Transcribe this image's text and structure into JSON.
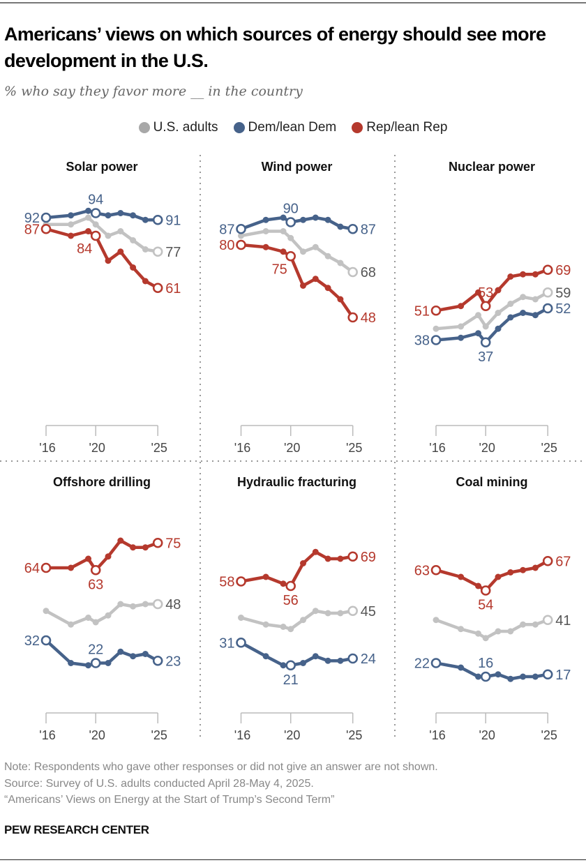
{
  "header": {
    "title": "Americans’ views on which sources of energy should see more development in the U.S.",
    "subtitle": "% who say they favor more __ in the country"
  },
  "legend": [
    {
      "label": "U.S. adults",
      "color": "#c2c2c2"
    },
    {
      "label": "Dem/lean Dem",
      "color": "#46628a"
    },
    {
      "label": "Rep/lean Rep",
      "color": "#b5392d"
    }
  ],
  "colors": {
    "us": "#c2c2c2",
    "us_label": "#555555",
    "dem": "#46628a",
    "rep": "#b5392d",
    "axis": "#bbbbbb"
  },
  "chart_data": [
    {
      "type": "line",
      "title": "Solar power",
      "x": [
        2016,
        2018,
        2019.4,
        2020,
        2021,
        2022,
        2023,
        2024,
        2025
      ],
      "xticks": [
        "'16",
        "'20",
        "'25"
      ],
      "xtick_values": [
        2016,
        2020,
        2025
      ],
      "series": [
        {
          "name": "U.S. adults",
          "key": "us",
          "values": [
            89,
            89,
            92,
            89,
            84,
            86,
            82,
            78,
            77
          ],
          "labels": [
            {
              "at": 2025,
              "text": "77",
              "pos": "right"
            }
          ]
        },
        {
          "name": "Dem/lean Dem",
          "key": "dem",
          "values": [
            92,
            93,
            95,
            94,
            93,
            94,
            93,
            91,
            91
          ],
          "labels": [
            {
              "at": 2016,
              "text": "92",
              "pos": "left"
            },
            {
              "at": 2020,
              "text": "94",
              "pos": "above"
            },
            {
              "at": 2025,
              "text": "91",
              "pos": "right"
            }
          ]
        },
        {
          "name": "Rep/lean Rep",
          "key": "rep",
          "values": [
            87,
            84,
            86,
            84,
            73,
            77,
            70,
            64,
            61
          ],
          "labels": [
            {
              "at": 2016,
              "text": "87",
              "pos": "left"
            },
            {
              "at": 2020,
              "text": "84",
              "pos": "below-left"
            },
            {
              "at": 2025,
              "text": "61",
              "pos": "right"
            }
          ]
        }
      ]
    },
    {
      "type": "line",
      "title": "Wind power",
      "x": [
        2016,
        2018,
        2019.4,
        2020,
        2021,
        2022,
        2023,
        2024,
        2025
      ],
      "xticks": [
        "'16",
        "'20",
        "'25"
      ],
      "xtick_values": [
        2016,
        2020,
        2025
      ],
      "series": [
        {
          "name": "U.S. adults",
          "key": "us",
          "values": [
            84,
            86,
            86,
            83,
            77,
            79,
            75,
            72,
            68
          ],
          "labels": [
            {
              "at": 2025,
              "text": "68",
              "pos": "right"
            }
          ]
        },
        {
          "name": "Dem/lean Dem",
          "key": "dem",
          "values": [
            87,
            91,
            92,
            90,
            91,
            92,
            91,
            88,
            87
          ],
          "labels": [
            {
              "at": 2016,
              "text": "87",
              "pos": "left"
            },
            {
              "at": 2020,
              "text": "90",
              "pos": "above"
            },
            {
              "at": 2025,
              "text": "87",
              "pos": "right"
            }
          ]
        },
        {
          "name": "Rep/lean Rep",
          "key": "rep",
          "values": [
            80,
            79,
            77,
            75,
            62,
            65,
            61,
            56,
            48
          ],
          "labels": [
            {
              "at": 2016,
              "text": "80",
              "pos": "left"
            },
            {
              "at": 2020,
              "text": "75",
              "pos": "below-left"
            },
            {
              "at": 2025,
              "text": "48",
              "pos": "right"
            }
          ]
        }
      ]
    },
    {
      "type": "line",
      "title": "Nuclear power",
      "x": [
        2016,
        2018,
        2019.4,
        2020,
        2021,
        2022,
        2023,
        2024,
        2025
      ],
      "xticks": [
        "'16",
        "'20",
        "'25"
      ],
      "xtick_values": [
        2016,
        2020,
        2025
      ],
      "series": [
        {
          "name": "U.S. adults",
          "key": "us",
          "values": [
            43,
            44,
            49,
            44,
            50,
            54,
            57,
            56,
            59
          ],
          "labels": [
            {
              "at": 2025,
              "text": "59",
              "pos": "right"
            }
          ]
        },
        {
          "name": "Dem/lean Dem",
          "key": "dem",
          "values": [
            38,
            39,
            41,
            37,
            43,
            48,
            50,
            49,
            52
          ],
          "labels": [
            {
              "at": 2016,
              "text": "38",
              "pos": "left"
            },
            {
              "at": 2020,
              "text": "37",
              "pos": "below"
            },
            {
              "at": 2025,
              "text": "52",
              "pos": "right"
            }
          ]
        },
        {
          "name": "Rep/lean Rep",
          "key": "rep",
          "values": [
            51,
            53,
            59,
            53,
            60,
            66,
            67,
            67,
            69
          ],
          "labels": [
            {
              "at": 2016,
              "text": "51",
              "pos": "left"
            },
            {
              "at": 2020,
              "text": "53",
              "pos": "above"
            },
            {
              "at": 2025,
              "text": "69",
              "pos": "right"
            }
          ]
        }
      ]
    },
    {
      "type": "line",
      "title": "Offshore drilling",
      "x": [
        2016,
        2018,
        2019.4,
        2020,
        2021,
        2022,
        2023,
        2024,
        2025
      ],
      "xticks": [
        "'16",
        "'20",
        "'25"
      ],
      "xtick_values": [
        2016,
        2020,
        2025
      ],
      "series": [
        {
          "name": "U.S. adults",
          "key": "us",
          "values": [
            45,
            39,
            42,
            40,
            43,
            48,
            47,
            48,
            48
          ],
          "labels": [
            {
              "at": 2025,
              "text": "48",
              "pos": "right"
            }
          ]
        },
        {
          "name": "Dem/lean Dem",
          "key": "dem",
          "values": [
            32,
            22,
            21,
            22,
            22,
            27,
            25,
            26,
            23
          ],
          "labels": [
            {
              "at": 2016,
              "text": "32",
              "pos": "left"
            },
            {
              "at": 2020,
              "text": "22",
              "pos": "above"
            },
            {
              "at": 2025,
              "text": "23",
              "pos": "right"
            }
          ]
        },
        {
          "name": "Rep/lean Rep",
          "key": "rep",
          "values": [
            64,
            64,
            68,
            63,
            69,
            76,
            73,
            73,
            75
          ],
          "labels": [
            {
              "at": 2016,
              "text": "64",
              "pos": "left"
            },
            {
              "at": 2020,
              "text": "63",
              "pos": "below"
            },
            {
              "at": 2025,
              "text": "75",
              "pos": "right"
            }
          ]
        }
      ]
    },
    {
      "type": "line",
      "title": "Hydraulic fracturing",
      "x": [
        2016,
        2018,
        2019.4,
        2020,
        2021,
        2022,
        2023,
        2024,
        2025
      ],
      "xticks": [
        "'16",
        "'20",
        "'25"
      ],
      "xtick_values": [
        2016,
        2020,
        2025
      ],
      "series": [
        {
          "name": "U.S. adults",
          "key": "us",
          "values": [
            42,
            39,
            38,
            37,
            41,
            45,
            44,
            44,
            45
          ],
          "labels": [
            {
              "at": 2025,
              "text": "45",
              "pos": "right"
            }
          ]
        },
        {
          "name": "Dem/lean Dem",
          "key": "dem",
          "values": [
            31,
            25,
            21,
            21,
            22,
            25,
            23,
            23,
            24
          ],
          "labels": [
            {
              "at": 2016,
              "text": "31",
              "pos": "left"
            },
            {
              "at": 2020,
              "text": "21",
              "pos": "below"
            },
            {
              "at": 2025,
              "text": "24",
              "pos": "right"
            }
          ]
        },
        {
          "name": "Rep/lean Rep",
          "key": "rep",
          "values": [
            58,
            60,
            57,
            56,
            66,
            71,
            68,
            68,
            69
          ],
          "labels": [
            {
              "at": 2016,
              "text": "58",
              "pos": "left"
            },
            {
              "at": 2020,
              "text": "56",
              "pos": "below"
            },
            {
              "at": 2025,
              "text": "69",
              "pos": "right"
            }
          ]
        }
      ]
    },
    {
      "type": "line",
      "title": "Coal mining",
      "x": [
        2016,
        2018,
        2019.4,
        2020,
        2021,
        2022,
        2023,
        2024,
        2025
      ],
      "xticks": [
        "'16",
        "'20",
        "'25"
      ],
      "xtick_values": [
        2016,
        2020,
        2025
      ],
      "series": [
        {
          "name": "U.S. adults",
          "key": "us",
          "values": [
            41,
            37,
            35,
            33,
            36,
            36,
            39,
            39,
            41
          ],
          "labels": [
            {
              "at": 2025,
              "text": "41",
              "pos": "right"
            }
          ]
        },
        {
          "name": "Dem/lean Dem",
          "key": "dem",
          "values": [
            22,
            20,
            16,
            16,
            17,
            15,
            16,
            16,
            17
          ],
          "labels": [
            {
              "at": 2016,
              "text": "22",
              "pos": "left"
            },
            {
              "at": 2020,
              "text": "16",
              "pos": "above"
            },
            {
              "at": 2025,
              "text": "17",
              "pos": "right"
            }
          ]
        },
        {
          "name": "Rep/lean Rep",
          "key": "rep",
          "values": [
            63,
            60,
            56,
            54,
            60,
            62,
            63,
            64,
            67
          ],
          "labels": [
            {
              "at": 2016,
              "text": "63",
              "pos": "left"
            },
            {
              "at": 2020,
              "text": "54",
              "pos": "below"
            },
            {
              "at": 2025,
              "text": "67",
              "pos": "right"
            }
          ]
        }
      ]
    }
  ],
  "footer": {
    "note": "Note: Respondents who gave other responses or did not give an answer are not shown.",
    "source": "Source: Survey of U.S. adults conducted April 28-May 4, 2025.",
    "report": "“Americans’ Views on Energy at the Start of Trump’s Second Term”",
    "brand": "PEW RESEARCH CENTER"
  }
}
